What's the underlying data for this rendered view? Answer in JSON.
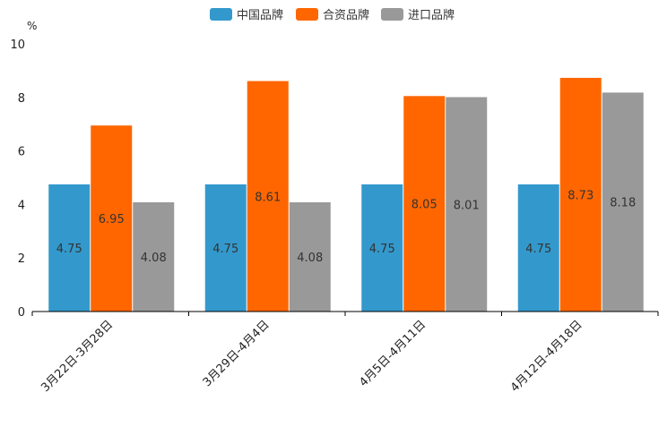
{
  "chart_data": {
    "type": "bar",
    "title": "",
    "xlabel": "",
    "ylabel": "%",
    "ylim": [
      0,
      10
    ],
    "yticks": [
      0,
      2,
      4,
      6,
      8,
      10
    ],
    "grid": false,
    "legend_position": "top-center",
    "categories": [
      "3月22日-3月28日",
      "3月29日-4月4日",
      "4月5日-4月11日",
      "4月12日-4月18日"
    ],
    "series": [
      {
        "name": "中国品牌",
        "color": "#3399cc",
        "values": [
          4.75,
          4.75,
          4.75,
          4.75
        ]
      },
      {
        "name": "合资品牌",
        "color": "#ff6600",
        "values": [
          6.95,
          8.61,
          8.05,
          8.73
        ]
      },
      {
        "name": "进口品牌",
        "color": "#999999",
        "values": [
          4.08,
          4.08,
          8.01,
          8.18
        ]
      }
    ]
  }
}
